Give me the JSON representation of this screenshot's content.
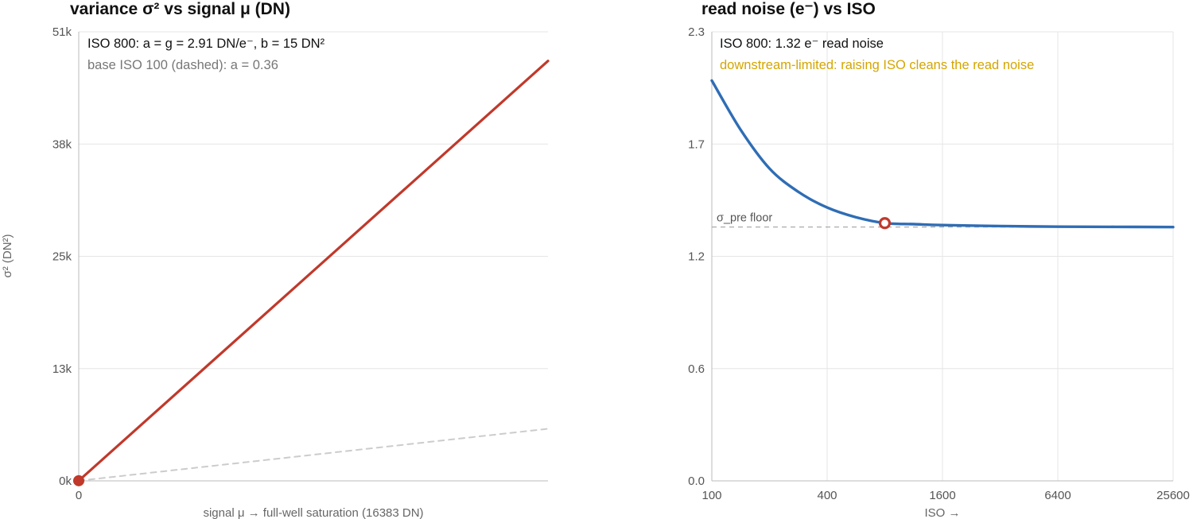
{
  "chart_data": [
    {
      "type": "line",
      "title": "variance  σ²  vs  signal μ   (DN)",
      "xlabel": "signal μ →  full-well saturation (16383 DN)",
      "ylabel": "σ²  (DN²)",
      "xlim": [
        0,
        16383
      ],
      "ylim": [
        0,
        51000
      ],
      "x_ticks": [
        {
          "value": 0,
          "label": "0"
        }
      ],
      "y_ticks": [
        {
          "value": 0,
          "label": "0k"
        },
        {
          "value": 12750,
          "label": "13k"
        },
        {
          "value": 25500,
          "label": "25k"
        },
        {
          "value": 38250,
          "label": "38k"
        },
        {
          "value": 51000,
          "label": "51k"
        }
      ],
      "grid": "horizontal",
      "annotations": [
        "ISO 800:  a = g = 2.91 DN/e⁻,  b = 15 DN²",
        "base ISO 100 (dashed):  a = 0.36"
      ],
      "series": [
        {
          "style": "solid",
          "color": "#c0392b",
          "a": 2.91,
          "b": 15,
          "points": [
            [
              0,
              15
            ],
            [
              16383,
              47690
            ]
          ]
        },
        {
          "style": "dashed",
          "color": "#cccccc",
          "a": 0.36,
          "b": 15,
          "points": [
            [
              0,
              15
            ],
            [
              16383,
              5913
            ]
          ]
        }
      ],
      "marker": {
        "x": 0,
        "y": 15,
        "color": "#c0392b",
        "fill": "filled"
      }
    },
    {
      "type": "line",
      "title": "read noise  (e⁻)  vs  ISO",
      "xlabel": "ISO →",
      "ylabel": "",
      "xscale": "log2",
      "xlim": [
        100,
        25600
      ],
      "ylim": [
        0,
        2.3
      ],
      "x_ticks": [
        {
          "value": 100,
          "label": "100"
        },
        {
          "value": 400,
          "label": "400"
        },
        {
          "value": 1600,
          "label": "1600"
        },
        {
          "value": 6400,
          "label": "6400"
        },
        {
          "value": 25600,
          "label": "25600"
        }
      ],
      "y_ticks": [
        {
          "value": 0,
          "label": "0.0"
        },
        {
          "value": 0.575,
          "label": "0.6"
        },
        {
          "value": 1.15,
          "label": "1.2"
        },
        {
          "value": 1.725,
          "label": "1.7"
        },
        {
          "value": 2.3,
          "label": "2.3"
        }
      ],
      "grid": "both",
      "annotations": [
        "ISO 800:  1.32 e⁻ read noise",
        "downstream-limited: raising ISO cleans the read noise"
      ],
      "floor": {
        "value": 1.3,
        "label": "σ_pre floor",
        "style": "dashed",
        "color": "#aaaaaa"
      },
      "series": [
        {
          "style": "solid",
          "color": "#2f6db5",
          "points": [
            [
              100,
              2.05
            ],
            [
              141,
              1.8
            ],
            [
              200,
              1.6
            ],
            [
              283,
              1.48
            ],
            [
              400,
              1.4
            ],
            [
              566,
              1.35
            ],
            [
              800,
              1.32
            ],
            [
              1131,
              1.315
            ],
            [
              1600,
              1.31
            ],
            [
              3200,
              1.305
            ],
            [
              6400,
              1.302
            ],
            [
              12800,
              1.301
            ],
            [
              25600,
              1.3
            ]
          ]
        }
      ],
      "marker": {
        "x": 800,
        "y": 1.32,
        "color": "#c0392b",
        "fill": "hollow"
      }
    }
  ]
}
